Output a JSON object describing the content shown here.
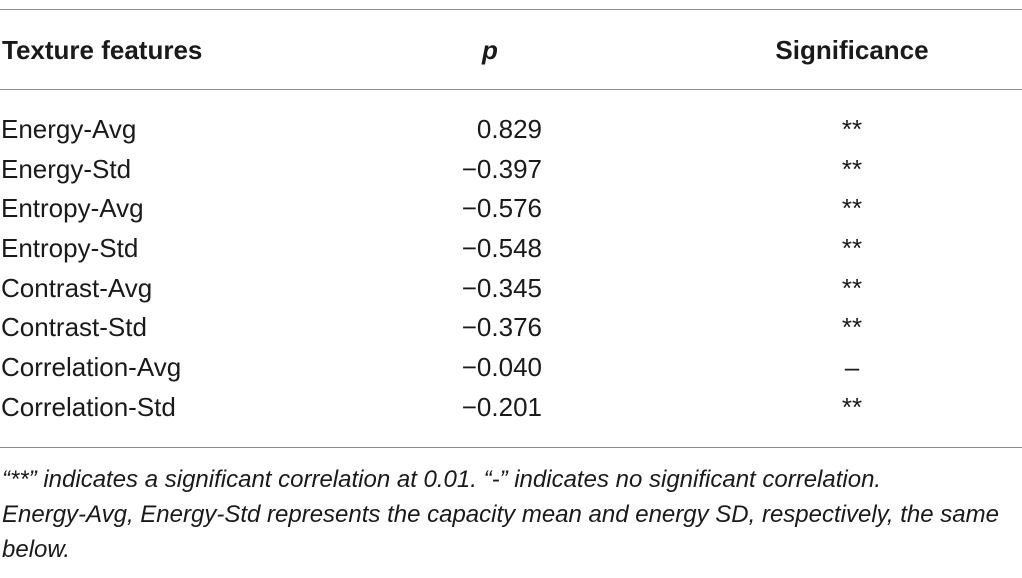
{
  "table": {
    "headers": {
      "feature": "Texture features",
      "p": "p",
      "significance": "Significance"
    },
    "rows": [
      {
        "feature": "Energy-Avg",
        "p": "0.829",
        "significance": "**"
      },
      {
        "feature": "Energy-Std",
        "p": "−0.397",
        "significance": "**"
      },
      {
        "feature": "Entropy-Avg",
        "p": "−0.576",
        "significance": "**"
      },
      {
        "feature": "Entropy-Std",
        "p": "−0.548",
        "significance": "**"
      },
      {
        "feature": "Contrast-Avg",
        "p": "−0.345",
        "significance": "**"
      },
      {
        "feature": "Contrast-Std",
        "p": "−0.376",
        "significance": "**"
      },
      {
        "feature": "Correlation-Avg",
        "p": "−0.040",
        "significance": "–"
      },
      {
        "feature": "Correlation-Std",
        "p": "−0.201",
        "significance": "**"
      }
    ]
  },
  "footnote": {
    "line1": "“**” indicates a significant correlation at 0.01. “-” indicates no significant correlation.",
    "line2": "Energy-Avg, Energy-Std represents the capacity mean and energy SD, respectively, the same below."
  }
}
